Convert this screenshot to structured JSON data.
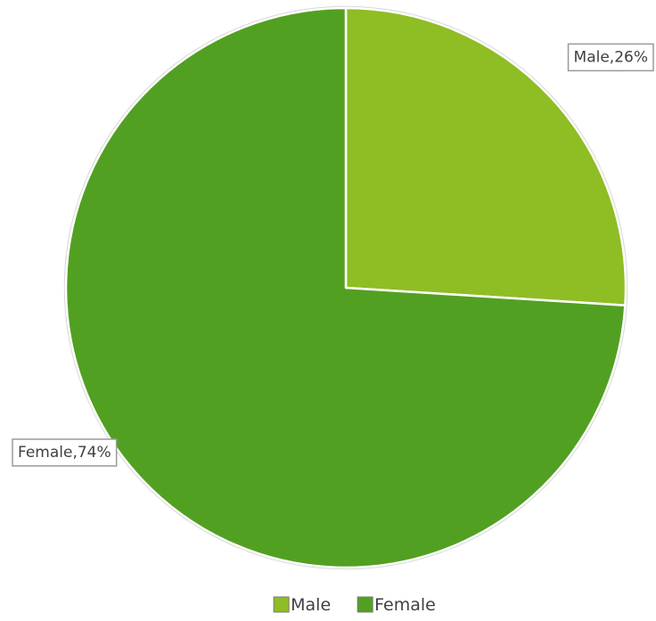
{
  "chart_data": {
    "type": "pie",
    "categories": [
      "Male",
      "Female"
    ],
    "values": [
      26,
      74
    ],
    "unit": "%",
    "colors": [
      "#8fbd24",
      "#52a021"
    ],
    "data_labels": [
      "Male,26%",
      "Female,74%"
    ],
    "legend": {
      "position": "bottom",
      "entries": [
        "Male",
        "Female"
      ]
    },
    "start_angle": "12 o'clock, clockwise",
    "slice_border_color": "#ffffff"
  }
}
